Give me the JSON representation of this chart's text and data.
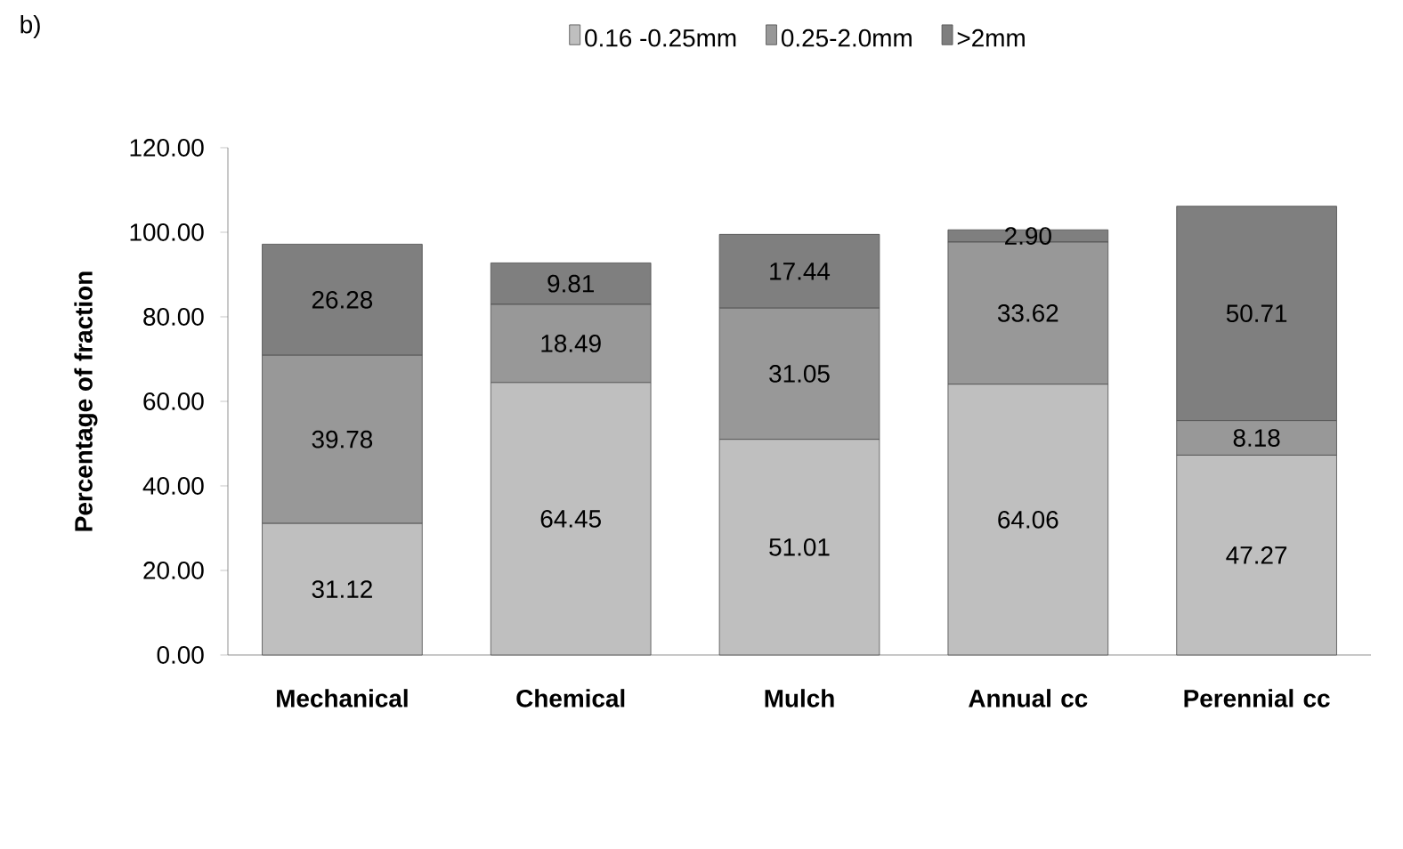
{
  "chart_data": {
    "type": "bar",
    "stacked": true,
    "categories": [
      "Mechanical",
      "Chemical",
      "Mulch",
      "Annual cc",
      "Perennial cc"
    ],
    "ylabel": "Percentage of fraction",
    "ylim": [
      0,
      120
    ],
    "yticks": [
      {
        "value": 0,
        "label": "0.00"
      },
      {
        "value": 20,
        "label": "20.00"
      },
      {
        "value": 40,
        "label": "40.00"
      },
      {
        "value": 60,
        "label": "60.00"
      },
      {
        "value": 80,
        "label": "80.00"
      },
      {
        "value": 100,
        "label": "100.00"
      },
      {
        "value": 120,
        "label": "120.00"
      }
    ],
    "series": [
      {
        "name": "0.16 -0.25mm",
        "color": "#bfbfbf",
        "values": [
          31.12,
          64.45,
          51.01,
          64.06,
          47.27
        ],
        "value_labels": [
          "31.12",
          "64.45",
          "51.01",
          "64.06",
          "47.27"
        ]
      },
      {
        "name": "0.25-2.0mm",
        "color": "#989898",
        "values": [
          39.78,
          18.49,
          31.05,
          33.62,
          8.18
        ],
        "value_labels": [
          "39.78",
          "18.49",
          "31.05",
          "33.62",
          "8.18"
        ]
      },
      {
        "name": ">2mm",
        "color": "#7f7f7f",
        "values": [
          26.28,
          9.81,
          17.44,
          2.9,
          50.71
        ],
        "value_labels": [
          "26.28",
          "9.81",
          "17.44",
          "2.90",
          "50.71"
        ]
      }
    ],
    "legend": "top",
    "grid": false,
    "annotations": [
      "b)"
    ]
  }
}
